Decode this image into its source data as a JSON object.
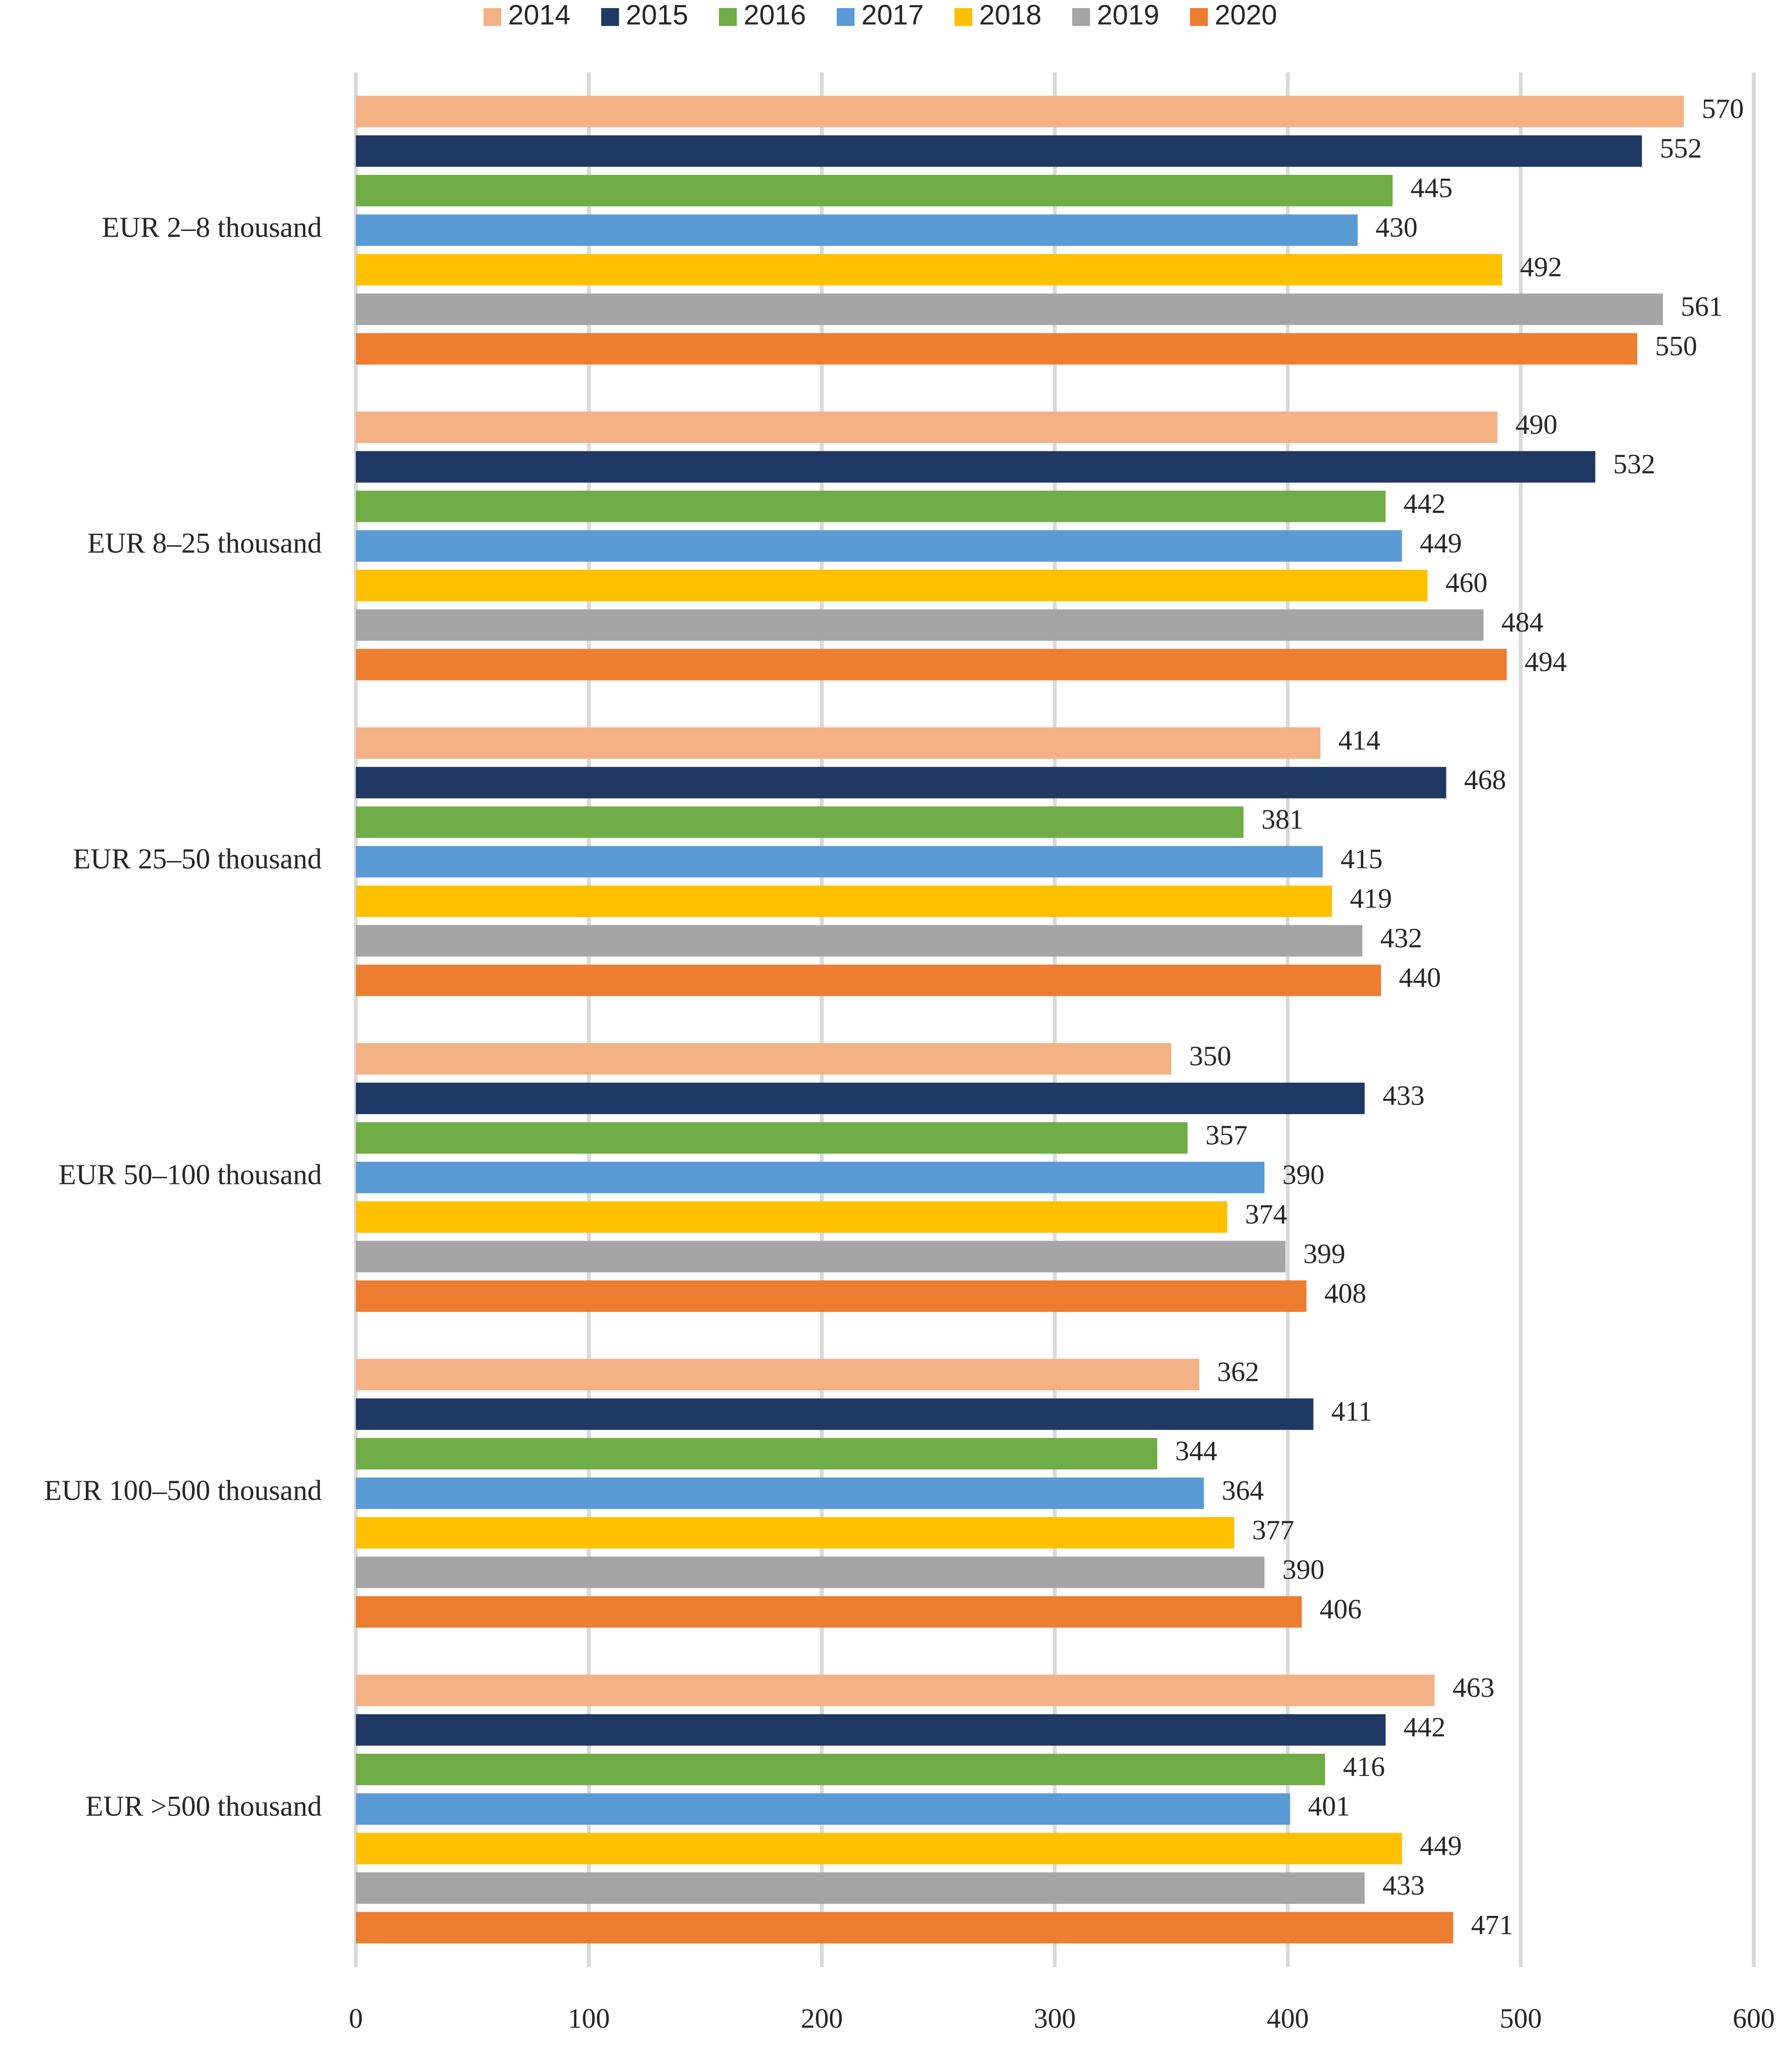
{
  "chart_data": {
    "type": "bar",
    "orientation": "horizontal",
    "title": "",
    "xlabel": "",
    "ylabel": "",
    "xlim": [
      0,
      600
    ],
    "ticks": [
      "0",
      "100",
      "200",
      "300",
      "400",
      "500",
      "600"
    ],
    "grid": true,
    "legend_position": "top",
    "categories": [
      "EUR 2–8 thousand",
      "EUR 8–25 thousand",
      "EUR 25–50 thousand",
      "EUR 50–100 thousand",
      "EUR 100–500 thousand",
      "EUR >500 thousand"
    ],
    "series": [
      {
        "name": "2014",
        "color": "#F4B183",
        "values": [
          570,
          490,
          414,
          350,
          362,
          463
        ]
      },
      {
        "name": "2015",
        "color": "#203864",
        "values": [
          552,
          532,
          468,
          433,
          411,
          442
        ]
      },
      {
        "name": "2016",
        "color": "#70AD47",
        "values": [
          445,
          442,
          381,
          357,
          344,
          416
        ]
      },
      {
        "name": "2017",
        "color": "#5B9BD5",
        "values": [
          430,
          449,
          415,
          390,
          364,
          401
        ]
      },
      {
        "name": "2018",
        "color": "#FFC000",
        "values": [
          492,
          460,
          419,
          374,
          377,
          449
        ]
      },
      {
        "name": "2019",
        "color": "#A5A5A5",
        "values": [
          561,
          484,
          432,
          399,
          390,
          433
        ]
      },
      {
        "name": "2020",
        "color": "#ED7D31",
        "values": [
          550,
          494,
          440,
          408,
          406,
          471
        ]
      }
    ]
  }
}
